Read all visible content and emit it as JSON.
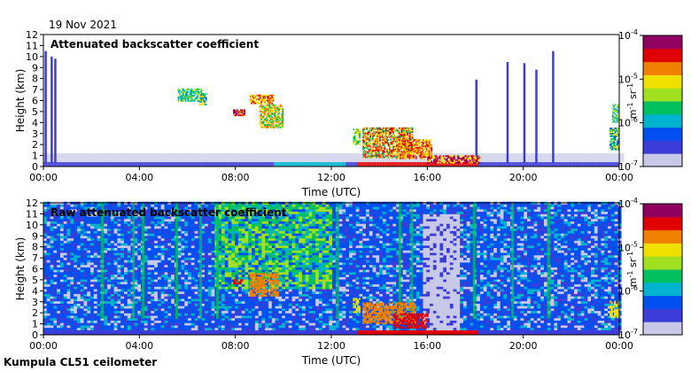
{
  "date_label": "19 Nov 2021",
  "footer_label": "Kumpula CL51 ceilometer",
  "colors": {
    "background": "#ffffff",
    "colormap": [
      "#c8c8e8",
      "#3c3cd8",
      "#0050f0",
      "#00b4d0",
      "#00c060",
      "#a0e020",
      "#f0e000",
      "#f08000",
      "#e00000",
      "#900060"
    ]
  },
  "chart_data": [
    {
      "type": "heatmap",
      "title": "Attenuated backscatter coefficient",
      "xlabel": "Time (UTC)",
      "ylabel": "Height (km)",
      "x_ticks": [
        "00:00",
        "04:00",
        "08:00",
        "12:00",
        "16:00",
        "20:00",
        "00:00"
      ],
      "y_ticks": [
        "0",
        "1",
        "2",
        "3",
        "4",
        "5",
        "6",
        "7",
        "8",
        "9",
        "10",
        "11",
        "12"
      ],
      "xlim": [
        0,
        24
      ],
      "ylim": [
        0,
        12
      ],
      "colorbar": {
        "ticks": [
          {
            "base": "10",
            "exp": "-4"
          },
          {
            "base": "10",
            "exp": "-5"
          },
          {
            "base": "10",
            "exp": "-6"
          },
          {
            "base": "10",
            "exp": "-7"
          }
        ],
        "label": {
          "m": "m",
          "m_exp": "-1",
          "sr": "sr",
          "sr_exp": "-1"
        },
        "scale": "log",
        "range": [
          1e-07,
          0.0001
        ]
      }
    },
    {
      "type": "heatmap",
      "title": "Raw attenuated backscatter coefficient",
      "xlabel": "Time (UTC)",
      "ylabel": "Height (km)",
      "x_ticks": [
        "00:00",
        "04:00",
        "08:00",
        "12:00",
        "16:00",
        "20:00",
        "00:00"
      ],
      "y_ticks": [
        "0",
        "1",
        "2",
        "3",
        "4",
        "5",
        "6",
        "7",
        "8",
        "9",
        "10",
        "11",
        "12"
      ],
      "xlim": [
        0,
        24
      ],
      "ylim": [
        0,
        12
      ],
      "colorbar": {
        "ticks": [
          {
            "base": "10",
            "exp": "-4"
          },
          {
            "base": "10",
            "exp": "-5"
          },
          {
            "base": "10",
            "exp": "-6"
          },
          {
            "base": "10",
            "exp": "-7"
          }
        ],
        "label": {
          "m": "m",
          "m_exp": "-1",
          "sr": "sr",
          "sr_exp": "-1"
        },
        "scale": "log",
        "range": [
          1e-07,
          0.0001
        ]
      }
    }
  ]
}
